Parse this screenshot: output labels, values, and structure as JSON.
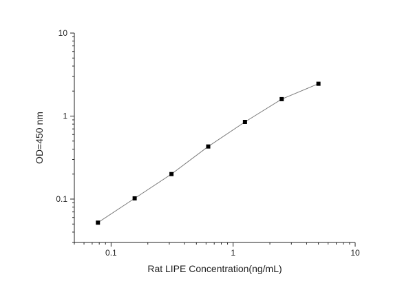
{
  "chart_data": {
    "type": "scatter",
    "xlabel": "Rat LIPE Concentration(ng/mL)",
    "ylabel": "OD=450 nm",
    "xscale": "log",
    "yscale": "log",
    "xlim": [
      0.05,
      10
    ],
    "ylim": [
      0.03,
      10
    ],
    "xticks": [
      {
        "value": 0.1,
        "label": "0.1"
      },
      {
        "value": 1,
        "label": "1"
      },
      {
        "value": 10,
        "label": "10"
      }
    ],
    "yticks": [
      {
        "value": 0.1,
        "label": "0.1"
      },
      {
        "value": 1,
        "label": "1"
      },
      {
        "value": 10,
        "label": "10"
      }
    ],
    "grid": false,
    "series": [
      {
        "x": [
          0.078,
          0.156,
          0.3125,
          0.625,
          1.25,
          2.5,
          5
        ],
        "y": [
          0.052,
          0.102,
          0.2,
          0.43,
          0.85,
          1.6,
          2.45
        ],
        "marker": "square",
        "line": true
      }
    ],
    "colors": {
      "line": "#7a7a7a",
      "marker": "#000000",
      "axis": "#222222"
    }
  }
}
